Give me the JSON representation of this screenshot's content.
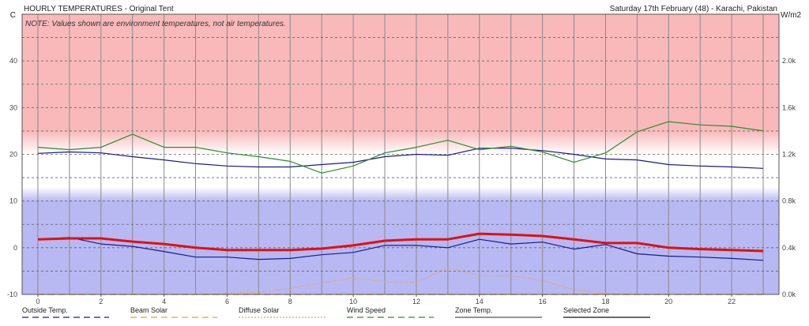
{
  "header": {
    "title": "HOURLY TEMPERATURES - Original Tent",
    "date_location": "Saturday 17th February (48) - Karachi, Pakistan",
    "left_unit": "C",
    "right_unit": "W/m2",
    "note": "NOTE: Values shown are environment temperatures, not air temperatures."
  },
  "chart_data": {
    "type": "line",
    "x": [
      0,
      1,
      2,
      3,
      4,
      5,
      6,
      7,
      8,
      9,
      10,
      11,
      12,
      13,
      14,
      15,
      16,
      17,
      18,
      19,
      20,
      21,
      22,
      23
    ],
    "x_ticks": [
      "0",
      "2",
      "4",
      "6",
      "8",
      "10",
      "12",
      "14",
      "16",
      "18",
      "20",
      "22"
    ],
    "x_tick_values": [
      0,
      2,
      4,
      6,
      8,
      10,
      12,
      14,
      16,
      18,
      20,
      22
    ],
    "xlim": [
      -0.5,
      23.5
    ],
    "ylim": [
      -10,
      50
    ],
    "y_ticks": [
      "-10",
      "0",
      "10",
      "20",
      "30",
      "40"
    ],
    "y_tick_values": [
      -10,
      0,
      10,
      20,
      30,
      40
    ],
    "y2lim": [
      0,
      2.4
    ],
    "y2_ticks": [
      "0.0k",
      "0.4k",
      "0.8k",
      "1.2k",
      "1.6k",
      "2.0k"
    ],
    "y2_tick_values": [
      0,
      0.4,
      0.8,
      1.2,
      1.6,
      2.0
    ],
    "background_bands": {
      "hot_above": 25,
      "neutral_top": 20,
      "neutral_bottom": 13,
      "cold_below": 10
    },
    "grid": true,
    "series": [
      {
        "name": "Outside Temp.",
        "axis": "left",
        "color": "#1a1a8c",
        "values": [
          20.2,
          20.5,
          20.3,
          19.5,
          18.8,
          18.0,
          17.5,
          17.3,
          17.3,
          17.8,
          18.3,
          19.5,
          20.0,
          19.8,
          21.3,
          21.3,
          20.8,
          20.0,
          19.0,
          18.8,
          17.8,
          17.5,
          17.3,
          17.0
        ]
      },
      {
        "name": "Wind Speed",
        "axis": "left",
        "color": "#2e8b2e",
        "values": [
          21.5,
          21.0,
          21.5,
          24.3,
          21.5,
          21.5,
          20.3,
          19.5,
          18.5,
          16.0,
          17.5,
          20.3,
          21.5,
          23.0,
          21.0,
          21.7,
          20.5,
          18.3,
          20.3,
          24.8,
          27.0,
          26.3,
          26.0,
          25.0
        ]
      },
      {
        "name": "Zone Temp.",
        "axis": "left",
        "color": "#1a1a8c",
        "values": [
          1.8,
          2.2,
          0.8,
          0.3,
          -0.8,
          -2.0,
          -2.0,
          -2.5,
          -2.3,
          -1.5,
          -1.0,
          0.5,
          0.5,
          0.0,
          1.8,
          0.8,
          1.2,
          -0.3,
          0.7,
          -1.3,
          -1.8,
          -2.0,
          -2.3,
          -2.7
        ]
      },
      {
        "name": "Selected Zone",
        "axis": "left",
        "color": "#e01010",
        "values": [
          1.8,
          2.0,
          2.0,
          1.3,
          0.8,
          0.0,
          -0.5,
          -0.5,
          -0.5,
          -0.2,
          0.5,
          1.5,
          1.8,
          1.8,
          3.0,
          2.8,
          2.5,
          1.8,
          1.0,
          1.0,
          0.0,
          -0.3,
          -0.5,
          -0.7
        ]
      },
      {
        "name": "Diffuse Solar",
        "axis": "right",
        "color": "#e8a060",
        "values": [
          0,
          0,
          0,
          0,
          0,
          0,
          0.01,
          0.02,
          0.05,
          0.1,
          0.14,
          0.11,
          0.1,
          0.23,
          0.16,
          0.16,
          0.12,
          0.04,
          0.01,
          0,
          0,
          0,
          0,
          0
        ]
      },
      {
        "name": "Beam Solar",
        "axis": "right",
        "color": "#f0a020",
        "values": [
          0,
          0,
          0,
          0,
          0,
          0,
          0,
          0,
          0,
          0,
          0,
          0,
          0,
          0,
          0,
          0,
          0,
          0,
          0,
          0,
          0,
          0,
          0,
          0
        ]
      }
    ]
  },
  "legend": [
    {
      "label": "Outside Temp.",
      "color": "#1a1a8c",
      "dash": "8,5"
    },
    {
      "label": "Beam Solar",
      "color": "#f0a020",
      "dash": "8,5"
    },
    {
      "label": "Diffuse Solar",
      "color": "#e8a060",
      "dash": "2,2"
    },
    {
      "label": "Wind Speed",
      "color": "#2e8b2e",
      "dash": "8,5"
    },
    {
      "label": "Zone Temp.",
      "color": "#555555",
      "dash": ""
    },
    {
      "label": "Selected Zone",
      "color": "#111111",
      "dash": ""
    }
  ]
}
